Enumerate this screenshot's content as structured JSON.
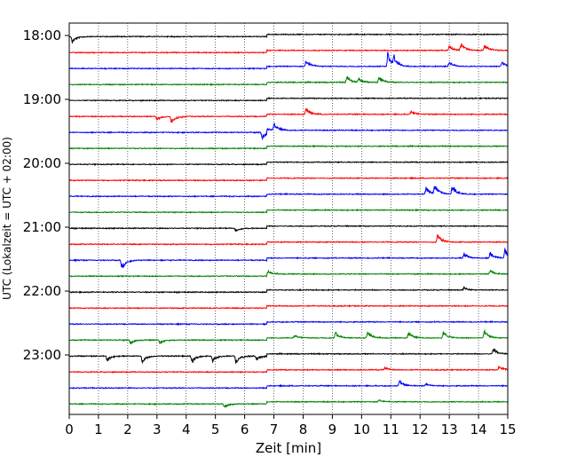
{
  "chart_data": {
    "type": "line",
    "title": "",
    "xlabel": "Zeit  [min]",
    "ylabel": "UTC (Lokalzeit = UTC + 02:00)",
    "xlim": [
      0,
      15
    ],
    "x_ticks": [
      "0",
      "1",
      "2",
      "3",
      "4",
      "5",
      "6",
      "7",
      "8",
      "9",
      "10",
      "11",
      "12",
      "13",
      "14",
      "15"
    ],
    "y_tick_labels": [
      "18:00",
      "19:00",
      "20:00",
      "21:00",
      "22:00",
      "23:00"
    ],
    "y_tick_label_rows": [
      0,
      4,
      8,
      12,
      16,
      20
    ],
    "grid_x": true,
    "trace_colors": [
      "#000000",
      "#ff0000",
      "#0000ff",
      "#008000"
    ],
    "rows": [
      {
        "start": "18:00",
        "events": [
          {
            "t": 0.1,
            "a": 0.5
          }
        ]
      },
      {
        "start": "18:15",
        "events": [
          {
            "t": 13.0,
            "a": 0.4
          },
          {
            "t": 13.4,
            "a": 0.6
          },
          {
            "t": 14.2,
            "a": 0.5
          }
        ]
      },
      {
        "start": "18:30",
        "events": [
          {
            "t": 8.1,
            "a": 0.6
          },
          {
            "t": 10.9,
            "a": 1.2
          },
          {
            "t": 11.1,
            "a": 0.7
          },
          {
            "t": 13.0,
            "a": 0.4
          },
          {
            "t": 14.8,
            "a": 0.4
          }
        ]
      },
      {
        "start": "18:45",
        "events": [
          {
            "t": 9.5,
            "a": 0.5
          },
          {
            "t": 9.9,
            "a": 0.3
          },
          {
            "t": 10.6,
            "a": 0.5
          }
        ]
      },
      {
        "start": "19:00",
        "events": []
      },
      {
        "start": "19:15",
        "events": [
          {
            "t": 3.0,
            "a": 0.3
          },
          {
            "t": 3.5,
            "a": 0.6
          },
          {
            "t": 8.1,
            "a": 0.5
          },
          {
            "t": 11.7,
            "a": 0.3
          }
        ]
      },
      {
        "start": "19:30",
        "events": [
          {
            "t": 6.6,
            "a": 0.5
          },
          {
            "t": 7.0,
            "a": 0.6
          }
        ]
      },
      {
        "start": "19:45",
        "events": []
      },
      {
        "start": "20:00",
        "events": []
      },
      {
        "start": "20:15",
        "events": []
      },
      {
        "start": "20:30",
        "events": [
          {
            "t": 12.2,
            "a": 0.6
          },
          {
            "t": 12.5,
            "a": 0.8
          },
          {
            "t": 13.1,
            "a": 0.7
          }
        ]
      },
      {
        "start": "20:45",
        "events": []
      },
      {
        "start": "21:00",
        "events": [
          {
            "t": 5.7,
            "a": 0.25
          }
        ]
      },
      {
        "start": "21:15",
        "events": [
          {
            "t": 12.6,
            "a": 0.6
          }
        ]
      },
      {
        "start": "21:30",
        "events": [
          {
            "t": 1.8,
            "a": 0.7
          },
          {
            "t": 13.5,
            "a": 0.4
          },
          {
            "t": 14.4,
            "a": 0.5
          },
          {
            "t": 14.9,
            "a": 0.7
          }
        ]
      },
      {
        "start": "21:45",
        "events": [
          {
            "t": 6.8,
            "a": 0.25
          },
          {
            "t": 14.4,
            "a": 0.3
          }
        ]
      },
      {
        "start": "22:00",
        "events": [
          {
            "t": 13.5,
            "a": 0.2
          }
        ]
      },
      {
        "start": "22:15",
        "events": []
      },
      {
        "start": "22:30",
        "events": []
      },
      {
        "start": "22:45",
        "events": [
          {
            "t": 2.1,
            "a": 0.3
          },
          {
            "t": 3.1,
            "a": 0.3
          },
          {
            "t": 7.7,
            "a": 0.2
          },
          {
            "t": 9.1,
            "a": 0.5
          },
          {
            "t": 10.2,
            "a": 0.6
          },
          {
            "t": 11.6,
            "a": 0.5
          },
          {
            "t": 12.8,
            "a": 0.5
          },
          {
            "t": 14.2,
            "a": 0.6
          }
        ]
      },
      {
        "start": "23:00",
        "events": [
          {
            "t": 1.3,
            "a": 0.4
          },
          {
            "t": 2.5,
            "a": 0.5
          },
          {
            "t": 4.2,
            "a": 0.6
          },
          {
            "t": 4.9,
            "a": 0.5
          },
          {
            "t": 5.7,
            "a": 0.6
          },
          {
            "t": 6.4,
            "a": 0.3
          },
          {
            "t": 14.5,
            "a": 0.5
          }
        ]
      },
      {
        "start": "23:15",
        "events": [
          {
            "t": 10.8,
            "a": 0.2
          },
          {
            "t": 14.7,
            "a": 0.3
          }
        ]
      },
      {
        "start": "23:30",
        "events": [
          {
            "t": 11.3,
            "a": 0.4
          },
          {
            "t": 12.2,
            "a": 0.2
          }
        ]
      },
      {
        "start": "23:45",
        "events": [
          {
            "t": 5.3,
            "a": 0.25
          },
          {
            "t": 10.6,
            "a": 0.2
          }
        ]
      }
    ]
  }
}
